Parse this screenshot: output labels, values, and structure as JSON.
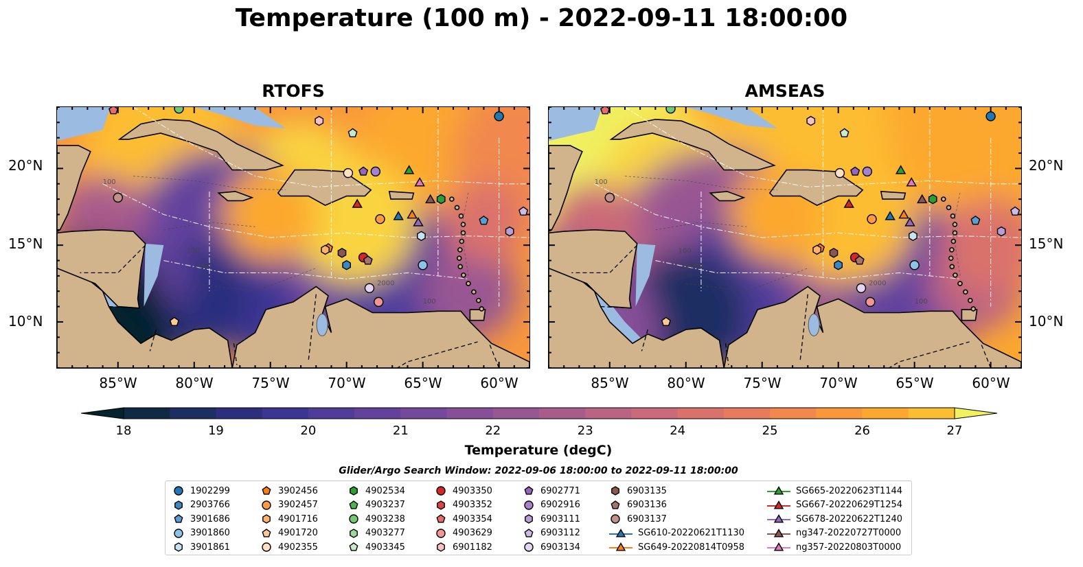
{
  "title": "Temperature (100 m) - 2022-09-11 18:00:00",
  "panels": [
    {
      "title": "RTOFS"
    },
    {
      "title": "AMSEAS"
    }
  ],
  "map_extent": {
    "lon": [
      -89,
      -58
    ],
    "lat": [
      7,
      24
    ]
  },
  "lat_ticks": [
    "20°N",
    "15°N",
    "10°N"
  ],
  "lon_ticks": [
    "85°W",
    "80°W",
    "75°W",
    "70°W",
    "65°W",
    "60°W"
  ],
  "colorbar": {
    "ticks": [
      "18",
      "19",
      "20",
      "21",
      "22",
      "23",
      "24",
      "25",
      "26",
      "27"
    ],
    "label": "Temperature (degC)",
    "range": [
      18,
      27
    ],
    "colors": [
      "#04232f",
      "#0f2a45",
      "#1c2e62",
      "#2c2f7e",
      "#3c3594",
      "#4f3c9b",
      "#62429d",
      "#74499c",
      "#864f98",
      "#985693",
      "#a95c8c",
      "#bb6383",
      "#cb6a78",
      "#da726c",
      "#e77c5d",
      "#f1884d",
      "#f8973c",
      "#fca82f",
      "#fdbd30",
      "#f9d43f",
      "#f0f060"
    ]
  },
  "contour_labels": [
    "100",
    "1000",
    "2000"
  ],
  "search_window": "Glider/Argo Search Window: 2022-09-06 18:00:00 to 2022-09-11 18:00:00",
  "legend_items": [
    {
      "label": "1902299",
      "marker": "circle",
      "color": "#1f77b4"
    },
    {
      "label": "2903766",
      "marker": "hexagon",
      "color": "#3a87c4"
    },
    {
      "label": "3901686",
      "marker": "pentagon",
      "color": "#5a9dd4"
    },
    {
      "label": "3901860",
      "marker": "circle",
      "color": "#8cc3e6"
    },
    {
      "label": "3901861",
      "marker": "hexagon",
      "color": "#c6e2f4"
    },
    {
      "label": "3902456",
      "marker": "pentagon",
      "color": "#ff7f0e"
    },
    {
      "label": "3902457",
      "marker": "circle",
      "color": "#ff9a40"
    },
    {
      "label": "4901716",
      "marker": "hexagon",
      "color": "#ffb36c"
    },
    {
      "label": "4901720",
      "marker": "pentagon",
      "color": "#ffc996"
    },
    {
      "label": "4902355",
      "marker": "circle",
      "color": "#ffe0c0"
    },
    {
      "label": "4902534",
      "marker": "hexagon",
      "color": "#2ca02c"
    },
    {
      "label": "4903237",
      "marker": "pentagon",
      "color": "#4fb64f"
    },
    {
      "label": "4903238",
      "marker": "circle",
      "color": "#74c874"
    },
    {
      "label": "4903277",
      "marker": "hexagon",
      "color": "#9ad99a"
    },
    {
      "label": "4903345",
      "marker": "pentagon",
      "color": "#c5edc5"
    },
    {
      "label": "4903350",
      "marker": "circle",
      "color": "#d62728"
    },
    {
      "label": "4903352",
      "marker": "hexagon",
      "color": "#e04546"
    },
    {
      "label": "4903354",
      "marker": "pentagon",
      "color": "#ea6b6c"
    },
    {
      "label": "4903629",
      "marker": "circle",
      "color": "#f29596"
    },
    {
      "label": "6901182",
      "marker": "hexagon",
      "color": "#fac1c1"
    },
    {
      "label": "6902771",
      "marker": "pentagon",
      "color": "#9467bd"
    },
    {
      "label": "6902916",
      "marker": "circle",
      "color": "#a782cb"
    },
    {
      "label": "6903111",
      "marker": "hexagon",
      "color": "#bb9dd8"
    },
    {
      "label": "6903112",
      "marker": "pentagon",
      "color": "#cfb9e6"
    },
    {
      "label": "6903134",
      "marker": "circle",
      "color": "#e4d6f3"
    },
    {
      "label": "6903135",
      "marker": "hexagon",
      "color": "#8c564b"
    },
    {
      "label": "6903136",
      "marker": "pentagon",
      "color": "#a7736a"
    },
    {
      "label": "6903137",
      "marker": "circle",
      "color": "#c0928a"
    },
    {
      "label": "SG610-20220621T1130",
      "marker": "triangle",
      "color": "#1f77b4",
      "line": true
    },
    {
      "label": "SG649-20220814T0958",
      "marker": "triangle",
      "color": "#ff7f0e",
      "line": true
    },
    {
      "label": "SG665-20220623T1144",
      "marker": "triangle",
      "color": "#2ca02c",
      "line": true
    },
    {
      "label": "SG667-20220629T1254",
      "marker": "triangle",
      "color": "#d62728",
      "line": true
    },
    {
      "label": "SG678-20220622T1240",
      "marker": "triangle",
      "color": "#9467bd",
      "line": true
    },
    {
      "label": "ng347-20220727T0000",
      "marker": "triangle",
      "color": "#8c564b",
      "line": true
    },
    {
      "label": "ng357-20220803T0000",
      "marker": "triangle",
      "color": "#e377c2",
      "line": true
    }
  ],
  "observations": [
    {
      "id": "1902299",
      "lon": -60.0,
      "lat": 23.4
    },
    {
      "id": "3901686",
      "lon": -61.0,
      "lat": 16.6
    },
    {
      "id": "3901860",
      "lon": -65.0,
      "lat": 13.7
    },
    {
      "id": "3901861",
      "lon": -65.1,
      "lat": 15.6
    },
    {
      "id": "3902456",
      "lon": -71.2,
      "lat": 14.8
    },
    {
      "id": "3902457",
      "lon": -67.8,
      "lat": 16.7
    },
    {
      "id": "4901716",
      "lon": -71.4,
      "lat": 14.7
    },
    {
      "id": "4902355",
      "lon": -69.9,
      "lat": 19.7
    },
    {
      "id": "4902534",
      "lon": -63.8,
      "lat": 18.0
    },
    {
      "id": "4903238",
      "lon": -81.0,
      "lat": 23.9
    },
    {
      "id": "4903345",
      "lon": -69.6,
      "lat": 22.3
    },
    {
      "id": "4903350",
      "lon": -68.9,
      "lat": 14.2
    },
    {
      "id": "4903354",
      "lon": -85.3,
      "lat": 23.8
    },
    {
      "id": "4903629",
      "lon": -67.9,
      "lat": 11.3
    },
    {
      "id": "6901182",
      "lon": -71.8,
      "lat": 23.1
    },
    {
      "id": "6902771",
      "lon": -68.9,
      "lat": 19.8
    },
    {
      "id": "6902916",
      "lon": -68.1,
      "lat": 19.8
    },
    {
      "id": "6903111",
      "lon": -59.3,
      "lat": 15.9
    },
    {
      "id": "6903112",
      "lon": -58.4,
      "lat": 17.2
    },
    {
      "id": "6903134",
      "lon": -68.5,
      "lat": 12.2
    },
    {
      "id": "6903135",
      "lon": -70.3,
      "lat": 14.5
    },
    {
      "id": "6903136",
      "lon": -68.6,
      "lat": 14.0
    },
    {
      "id": "6903137",
      "lon": -85.0,
      "lat": 18.1
    },
    {
      "id": "4901720",
      "lon": -81.3,
      "lat": 10.0
    },
    {
      "id": "2903766",
      "lon": -70.0,
      "lat": 13.7
    },
    {
      "id": "SG610-20220621T1130",
      "lon": -66.6,
      "lat": 16.9
    },
    {
      "id": "SG649-20220814T0958",
      "lon": -65.7,
      "lat": 17.0
    },
    {
      "id": "SG665-20220623T1144",
      "lon": -65.9,
      "lat": 19.9
    },
    {
      "id": "SG667-20220629T1254",
      "lon": -69.3,
      "lat": 17.7
    },
    {
      "id": "SG678-20220622T1240",
      "lon": -65.3,
      "lat": 16.5
    },
    {
      "id": "ng347-20220727T0000",
      "lon": -64.5,
      "lat": 18.0
    },
    {
      "id": "ng357-20220803T0000",
      "lon": -65.2,
      "lat": 19.1
    }
  ]
}
